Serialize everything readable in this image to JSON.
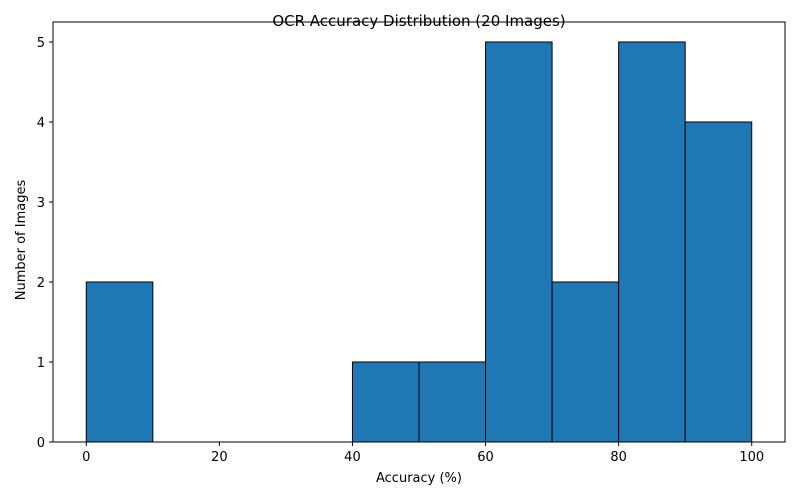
{
  "chart_data": {
    "type": "bar",
    "title": "OCR Accuracy Distribution (20 Images)",
    "xlabel": "Accuracy (%)",
    "ylabel": "Number of Images",
    "bin_edges": [
      0,
      10,
      20,
      30,
      40,
      50,
      60,
      70,
      80,
      90,
      100
    ],
    "values": [
      2,
      0,
      0,
      0,
      1,
      1,
      5,
      2,
      5,
      4
    ],
    "xlim": [
      -5,
      105
    ],
    "ylim": [
      0,
      5.25
    ],
    "xticks": [
      0,
      20,
      40,
      60,
      80,
      100
    ],
    "yticks": [
      0,
      1,
      2,
      3,
      4,
      5
    ],
    "bar_color": "#1f77b4",
    "edge_color": "#000000",
    "grid": false
  }
}
